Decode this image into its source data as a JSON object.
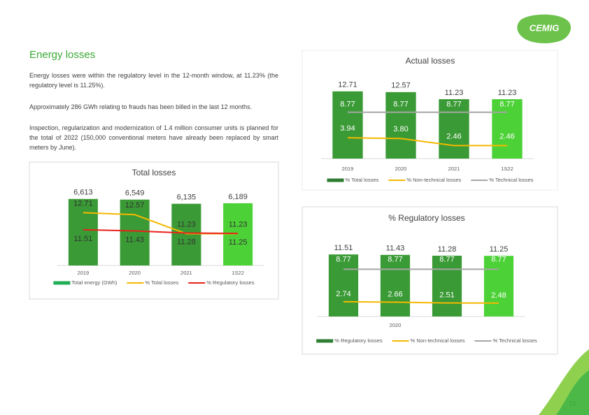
{
  "logo": "CEMIG",
  "heading": "Energy losses",
  "paragraphs": [
    "Energy losses were within the regulatory level in the 12-month window, at 11.23% (the regulatory level is 11.25%).",
    "Approximately 286 GWh relating to frauds has been billed in the last 12 months.",
    "Inspection, regularization and modernization of 1.4 million consumer units is planned for the total of 2022 (150,000 conventional meters have already been replaced by smart meters by June)."
  ],
  "page_number": "13",
  "chart_data": [
    {
      "type": "combo",
      "title": "Total losses",
      "categories": [
        "2019",
        "2020",
        "2021",
        "1S22"
      ],
      "ylim": [
        0,
        7500
      ],
      "y2lim": [
        9,
        14.3
      ],
      "series": [
        {
          "name": "Total energy (GWh)",
          "type": "bar",
          "color": "#1fae55",
          "bar_colors": [
            "#3a9a35",
            "#3a9a35",
            "#3a9a35",
            "#4cd137"
          ],
          "values": [
            6613,
            6549,
            6135,
            6189
          ],
          "value_labels": [
            "6,613",
            "6,549",
            "6,135",
            "6,189"
          ]
        },
        {
          "name": "% Total losses",
          "type": "line",
          "axis": "y2",
          "color": "#f5b800",
          "values": [
            12.71,
            12.57,
            11.23,
            11.23
          ]
        },
        {
          "name": "% Regulatory losses",
          "type": "line",
          "axis": "y2",
          "color": "#e8221b",
          "values": [
            11.51,
            11.43,
            11.28,
            11.25
          ]
        }
      ]
    },
    {
      "type": "combo",
      "title": "Actual losses",
      "categories": [
        "2019",
        "2020",
        "2021",
        "1S22"
      ],
      "ylim": [
        0,
        14
      ],
      "series": [
        {
          "name": "% Total losses",
          "type": "bar",
          "color": "#2e7d32",
          "bar_colors": [
            "#3a9a35",
            "#3a9a35",
            "#3a9a35",
            "#4cd137"
          ],
          "values": [
            12.71,
            12.57,
            11.23,
            11.23
          ]
        },
        {
          "name": "% Non-technical losses",
          "type": "line",
          "color": "#f5b800",
          "values": [
            3.94,
            3.8,
            2.46,
            2.46
          ],
          "value_labels": [
            "3.94",
            "3.80",
            "2.46",
            "2.46"
          ]
        },
        {
          "name": "% Technical losses",
          "type": "line",
          "color": "#a6a6a6",
          "values": [
            8.77,
            8.77,
            8.77,
            8.77
          ]
        }
      ]
    },
    {
      "type": "combo",
      "title": "% Regulatory losses",
      "categories": [
        null,
        "2020",
        null,
        null
      ],
      "ylim": [
        0,
        14
      ],
      "series": [
        {
          "name": "% Regulatory losses",
          "type": "bar",
          "color": "#2e7d32",
          "bar_colors": [
            "#3a9a35",
            "#3a9a35",
            "#3a9a35",
            "#4cd137"
          ],
          "values": [
            11.51,
            11.43,
            11.28,
            11.25
          ]
        },
        {
          "name": "% Non-technical losses",
          "type": "line",
          "color": "#f5b800",
          "values": [
            2.74,
            2.66,
            2.51,
            2.48
          ]
        },
        {
          "name": "% Technical losses",
          "type": "line",
          "color": "#a6a6a6",
          "values": [
            8.77,
            8.77,
            8.77,
            8.77
          ]
        }
      ]
    }
  ]
}
